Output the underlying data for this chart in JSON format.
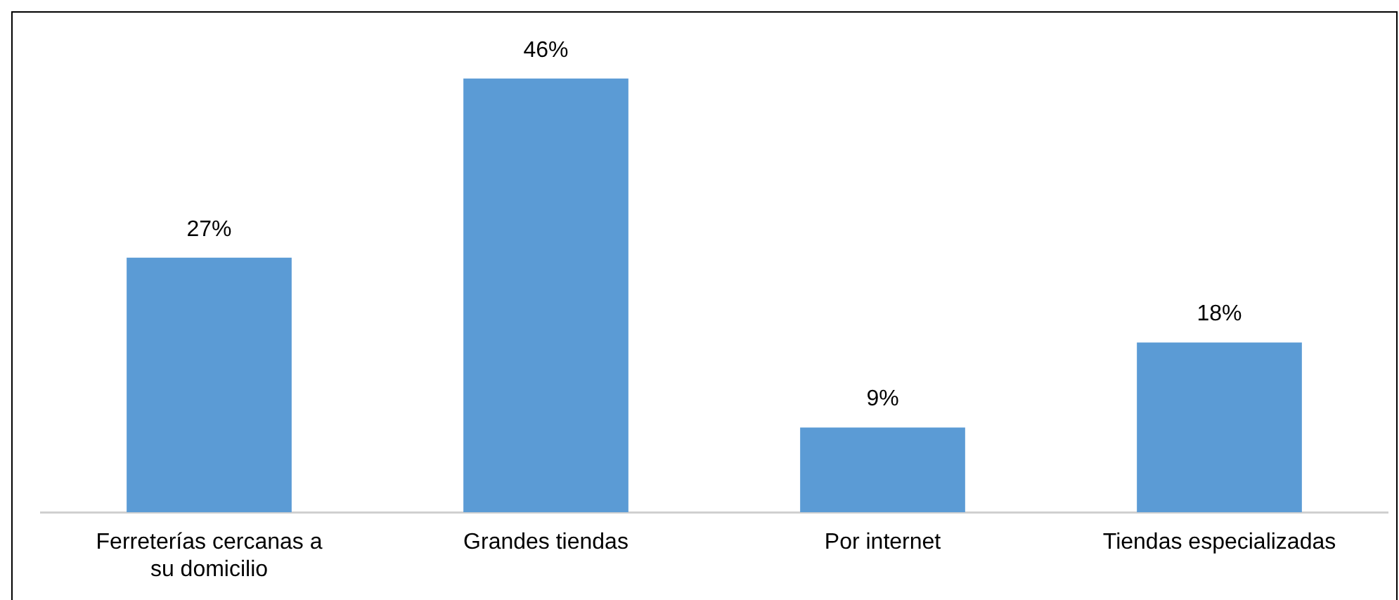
{
  "chart_data": {
    "type": "bar",
    "categories": [
      "Ferreterías cercanas a su domicilio",
      "Grandes tiendas",
      "Por internet",
      "Tiendas especializadas"
    ],
    "values": [
      27,
      46,
      9,
      18
    ],
    "color": "#5b9bd5",
    "value_labels": [
      "27%",
      "46%",
      "9%",
      "18%"
    ]
  }
}
